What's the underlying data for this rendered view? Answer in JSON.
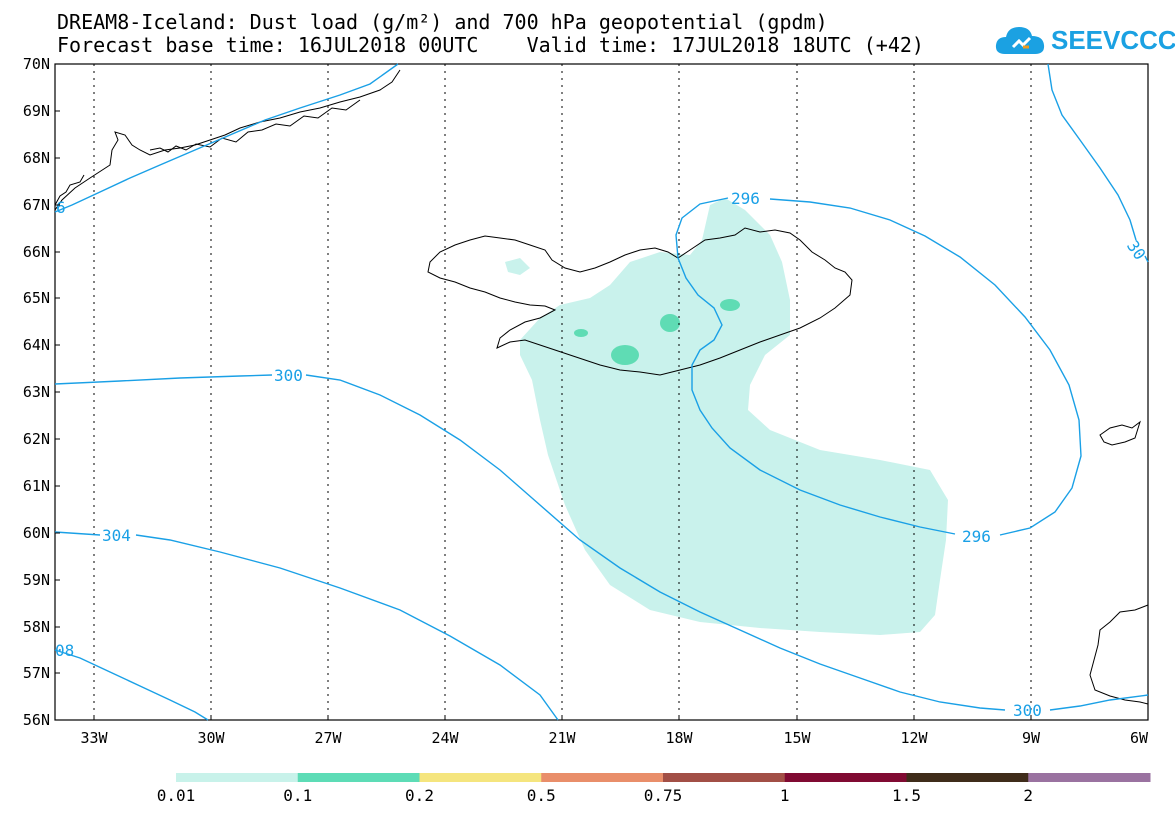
{
  "title": {
    "line1": "DREAM8-Iceland: Dust load (g/m²) and 700 hPa geopotential (gpdm)",
    "line2": "Forecast base time: 16JUL2018 00UTC    Valid time: 17JUL2018 18UTC (+42)"
  },
  "logo": {
    "text": "SEEVCCC",
    "icon": "cloud-icon"
  },
  "axes": {
    "lat_labels": [
      "70N",
      "69N",
      "68N",
      "67N",
      "66N",
      "65N",
      "64N",
      "63N",
      "62N",
      "61N",
      "60N",
      "59N",
      "58N",
      "57N",
      "56N"
    ],
    "lon_labels": [
      "33W",
      "30W",
      "27W",
      "24W",
      "21W",
      "18W",
      "15W",
      "12W",
      "9W",
      "6W"
    ],
    "lat_range": [
      56,
      70
    ],
    "lon_range": [
      -34.2,
      -6
    ]
  },
  "contours": {
    "color": "#1aa0e6",
    "labels": [
      "300",
      "304",
      "296",
      "296",
      "300",
      "30",
      "08",
      "6"
    ]
  },
  "dust": {
    "fill_light": "#c9f2ec",
    "fill_mid": "#5fdcb4"
  },
  "colorbar": {
    "colors": [
      "#c8f2ea",
      "#5ddcb6",
      "#f5e57e",
      "#e98e6a",
      "#a24f46",
      "#800a32",
      "#3f2c1a",
      "#9a72a0"
    ],
    "labels": [
      "0.01",
      "0.1",
      "0.2",
      "0.5",
      "0.75",
      "1",
      "1.5",
      "2"
    ]
  }
}
